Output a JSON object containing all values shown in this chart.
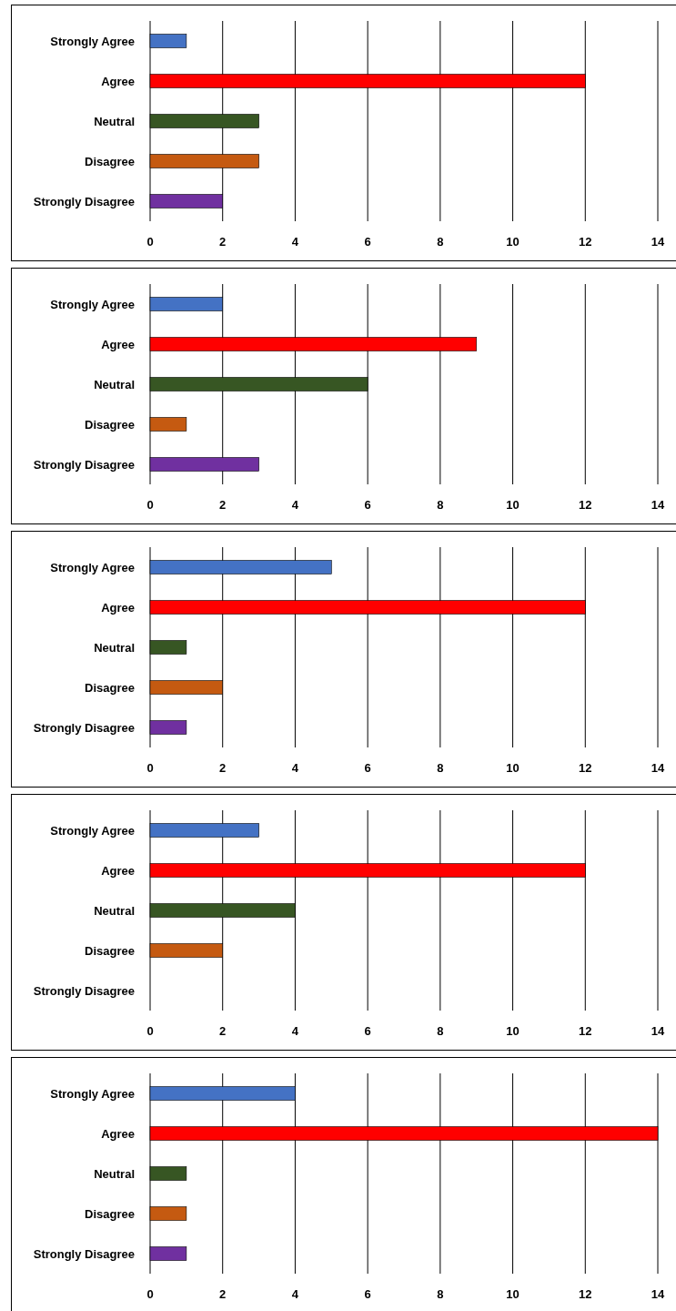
{
  "chart_data": [
    {
      "type": "bar",
      "orientation": "horizontal",
      "categories": [
        "Strongly Agree",
        "Agree",
        "Neutral",
        "Disagree",
        "Strongly Disagree"
      ],
      "values": [
        1,
        12,
        3,
        3,
        2
      ],
      "colors": [
        "#4472c4",
        "#ff0000",
        "#375623",
        "#c55a11",
        "#7030a0"
      ],
      "xlim": [
        0,
        14
      ],
      "xticks": [
        0,
        2,
        4,
        6,
        8,
        10,
        12,
        14
      ],
      "grid": "x"
    },
    {
      "type": "bar",
      "orientation": "horizontal",
      "categories": [
        "Strongly Agree",
        "Agree",
        "Neutral",
        "Disagree",
        "Strongly Disagree"
      ],
      "values": [
        2,
        9,
        6,
        1,
        3
      ],
      "colors": [
        "#4472c4",
        "#ff0000",
        "#375623",
        "#c55a11",
        "#7030a0"
      ],
      "xlim": [
        0,
        14
      ],
      "xticks": [
        0,
        2,
        4,
        6,
        8,
        10,
        12,
        14
      ],
      "grid": "x"
    },
    {
      "type": "bar",
      "orientation": "horizontal",
      "categories": [
        "Strongly Agree",
        "Agree",
        "Neutral",
        "Disagree",
        "Strongly Disagree"
      ],
      "values": [
        5,
        12,
        1,
        2,
        1
      ],
      "colors": [
        "#4472c4",
        "#ff0000",
        "#375623",
        "#c55a11",
        "#7030a0"
      ],
      "xlim": [
        0,
        14
      ],
      "xticks": [
        0,
        2,
        4,
        6,
        8,
        10,
        12,
        14
      ],
      "grid": "x"
    },
    {
      "type": "bar",
      "orientation": "horizontal",
      "categories": [
        "Strongly Agree",
        "Agree",
        "Neutral",
        "Disagree",
        "Strongly Disagree"
      ],
      "values": [
        3,
        12,
        4,
        2,
        0
      ],
      "colors": [
        "#4472c4",
        "#ff0000",
        "#375623",
        "#c55a11",
        "#7030a0"
      ],
      "xlim": [
        0,
        14
      ],
      "xticks": [
        0,
        2,
        4,
        6,
        8,
        10,
        12,
        14
      ],
      "grid": "x"
    },
    {
      "type": "bar",
      "orientation": "horizontal",
      "categories": [
        "Strongly Agree",
        "Agree",
        "Neutral",
        "Disagree",
        "Strongly Disagree"
      ],
      "values": [
        4,
        14,
        1,
        1,
        1
      ],
      "colors": [
        "#4472c4",
        "#ff0000",
        "#375623",
        "#c55a11",
        "#7030a0"
      ],
      "xlim": [
        0,
        14
      ],
      "xticks": [
        0,
        2,
        4,
        6,
        8,
        10,
        12,
        14
      ],
      "grid": "x"
    }
  ]
}
